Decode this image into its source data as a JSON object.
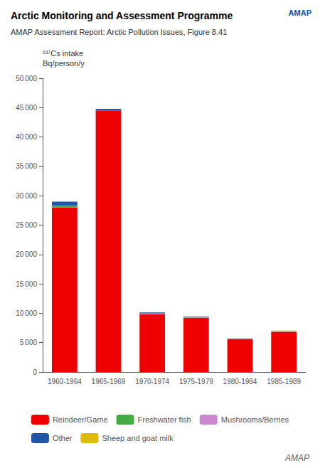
{
  "chart_data": {
    "type": "bar",
    "title": "Arctic Monitoring and Assessment Programme",
    "subtitle": "AMAP Assessment Report: Arctic Pollution Issues, Figure 8.41",
    "ylabel": "¹³⁷Cs intake\nBq/person/y",
    "annotations": [
      "AMAP",
      "AMAP"
    ],
    "categories": [
      "1960-1964",
      "1965-1969",
      "1970-1974",
      "1975-1979",
      "1980-1984",
      "1985-1989"
    ],
    "series": [
      {
        "name": "Reindeer/Game",
        "color": "#ee0000",
        "values": [
          28000,
          44500,
          9800,
          9200,
          5600,
          6800
        ]
      },
      {
        "name": "Freshwater fish",
        "color": "#44aa44",
        "values": [
          200,
          0,
          50,
          50,
          30,
          50
        ]
      },
      {
        "name": "Mushrooms/Berries",
        "color": "#cc88cc",
        "values": [
          100,
          0,
          100,
          100,
          50,
          50
        ]
      },
      {
        "name": "Other",
        "color": "#2255aa",
        "values": [
          700,
          300,
          200,
          100,
          50,
          50
        ]
      },
      {
        "name": "Sheep and goat milk",
        "color": "#ddbb00",
        "values": [
          0,
          0,
          0,
          0,
          0,
          100
        ]
      }
    ],
    "stacked": true,
    "ylim": [
      0,
      50000
    ],
    "yticks": [
      0,
      {
        "value": 5000,
        "label": "5 000"
      },
      {
        "value": 10000,
        "label": "10 000"
      },
      {
        "value": 15000,
        "label": "15 000"
      },
      {
        "value": 20000,
        "label": "20 000"
      },
      {
        "value": 25000,
        "label": "25 000"
      },
      {
        "value": 30000,
        "label": "30 000"
      },
      {
        "value": 35000,
        "label": "35 000"
      },
      {
        "value": 40000,
        "label": "40 000"
      },
      {
        "value": 45000,
        "label": "45 000"
      },
      {
        "value": 50000,
        "label": "50 000"
      }
    ],
    "grid": false,
    "legend": "bottom"
  }
}
